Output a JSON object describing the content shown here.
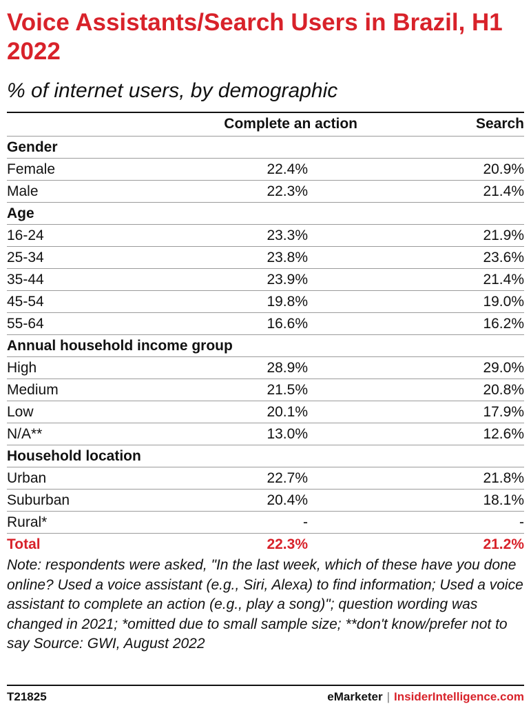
{
  "header": {
    "title": "Voice Assistants/Search Users in Brazil, H1 2022",
    "subtitle": "% of internet users, by demographic"
  },
  "chart_data": {
    "type": "table",
    "columns": [
      "Complete an action",
      "Search"
    ],
    "sections": [
      {
        "group": "Gender",
        "rows": [
          {
            "label": "Female",
            "values": [
              "22.4%",
              "20.9%"
            ]
          },
          {
            "label": "Male",
            "values": [
              "22.3%",
              "21.4%"
            ]
          }
        ]
      },
      {
        "group": "Age",
        "rows": [
          {
            "label": "16-24",
            "values": [
              "23.3%",
              "21.9%"
            ]
          },
          {
            "label": "25-34",
            "values": [
              "23.8%",
              "23.6%"
            ]
          },
          {
            "label": "35-44",
            "values": [
              "23.9%",
              "21.4%"
            ]
          },
          {
            "label": "45-54",
            "values": [
              "19.8%",
              "19.0%"
            ]
          },
          {
            "label": "55-64",
            "values": [
              "16.6%",
              "16.2%"
            ]
          }
        ]
      },
      {
        "group": "Annual household income group",
        "rows": [
          {
            "label": "High",
            "values": [
              "28.9%",
              "29.0%"
            ]
          },
          {
            "label": "Medium",
            "values": [
              "21.5%",
              "20.8%"
            ]
          },
          {
            "label": "Low",
            "values": [
              "20.1%",
              "17.9%"
            ]
          },
          {
            "label": "N/A**",
            "values": [
              "13.0%",
              "12.6%"
            ]
          }
        ]
      },
      {
        "group": "Household location",
        "rows": [
          {
            "label": "Urban",
            "values": [
              "22.7%",
              "21.8%"
            ]
          },
          {
            "label": "Suburban",
            "values": [
              "20.4%",
              "18.1%"
            ]
          },
          {
            "label": "Rural*",
            "values": [
              "-",
              "-"
            ]
          }
        ]
      }
    ],
    "total": {
      "label": "Total",
      "values": [
        "22.3%",
        "21.2%"
      ]
    }
  },
  "note": "Note: respondents were asked, \"In the last week, which of these have you done online? Used a voice assistant (e.g., Siri, Alexa) to find information; Used a voice assistant to complete an action (e.g., play a song)\"; question wording was changed in 2021; *omitted due to small sample size; **don't know/prefer not to say Source: GWI, August 2022",
  "footer": {
    "chart_id": "T21825",
    "brand_primary": "eMarketer",
    "brand_separator": "|",
    "brand_secondary": "InsiderIntelligence.com"
  },
  "colors": {
    "accent": "#d8222a",
    "text": "#111111",
    "rule": "#9a9a9a"
  }
}
